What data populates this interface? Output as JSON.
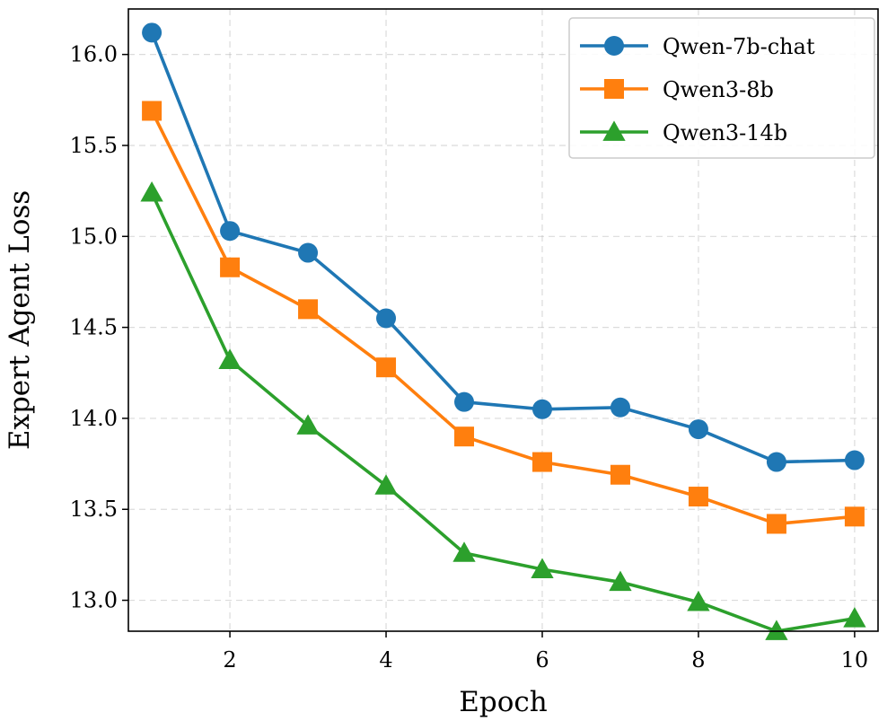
{
  "chart_data": {
    "type": "line",
    "title": "",
    "xlabel": "Epoch",
    "ylabel": "Expert Agent Loss",
    "x": [
      1,
      2,
      3,
      4,
      5,
      6,
      7,
      8,
      9,
      10
    ],
    "xlim": [
      0.7,
      10.3
    ],
    "ylim": [
      12.83,
      16.25
    ],
    "xticks": [
      2,
      4,
      6,
      8,
      10
    ],
    "xtick_labels": [
      "2",
      "4",
      "6",
      "8",
      "10"
    ],
    "yticks": [
      13.0,
      13.5,
      14.0,
      14.5,
      15.0,
      15.5,
      16.0
    ],
    "ytick_labels": [
      "13.0",
      "13.5",
      "14.0",
      "14.5",
      "15.0",
      "15.5",
      "16.0"
    ],
    "grid": true,
    "legend_position": "top-right",
    "series": [
      {
        "name": "Qwen-7b-chat",
        "color": "#1f77b4",
        "marker": "circle",
        "values": [
          16.12,
          15.03,
          14.91,
          14.55,
          14.09,
          14.05,
          14.06,
          13.94,
          13.76,
          13.77
        ]
      },
      {
        "name": "Qwen3-8b",
        "color": "#ff7f0e",
        "marker": "square",
        "values": [
          15.69,
          14.83,
          14.6,
          14.28,
          13.9,
          13.76,
          13.69,
          13.57,
          13.42,
          13.46
        ]
      },
      {
        "name": "Qwen3-14b",
        "color": "#2ca02c",
        "marker": "triangle",
        "values": [
          15.24,
          14.32,
          13.96,
          13.63,
          13.26,
          13.17,
          13.1,
          12.99,
          12.83,
          12.9
        ]
      }
    ]
  }
}
